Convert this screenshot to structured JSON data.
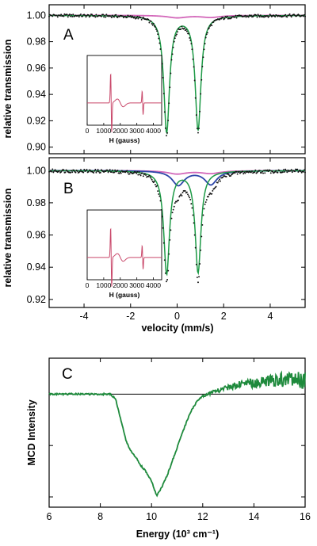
{
  "colors": {
    "experimental": "#111111",
    "total_fit": "#2e8b3a",
    "component_green": "#1d9a46",
    "component_pink": "#d368ba",
    "component_blue": "#2c45a8",
    "epr_trace": "#c9486a",
    "mcd_trace": "#1e8a3c",
    "baseline": "#000000"
  },
  "chart_data": [
    {
      "id": "A",
      "type": "line",
      "panel_label": "A",
      "xlabel": "",
      "ylabel": "relative transmission",
      "xlim": [
        -5.5,
        5.5
      ],
      "ylim": [
        0.895,
        1.008
      ],
      "x_ticks": [
        -4,
        -2,
        0,
        2,
        4
      ],
      "y_ticks": [
        "0.90",
        "0.92",
        "0.94",
        "0.96",
        "0.98",
        "1.00"
      ],
      "series": [
        {
          "role": "experimental",
          "style": "dots",
          "lines": [
            {
              "center": -0.45,
              "gamma": 0.16,
              "depth": 0.0905
            },
            {
              "center": 0.9,
              "gamma": 0.16,
              "depth": 0.0885
            }
          ]
        },
        {
          "role": "component_green",
          "style": "line",
          "lines": [
            {
              "center": -0.45,
              "gamma": 0.15,
              "depth": 0.0885
            },
            {
              "center": 0.9,
              "gamma": 0.15,
              "depth": 0.0865
            }
          ]
        },
        {
          "role": "component_pink",
          "style": "line",
          "lines": [
            {
              "center": 0.0,
              "gamma": 0.5,
              "depth": 0.0018
            },
            {
              "center": 1.45,
              "gamma": 0.5,
              "depth": 0.0015
            }
          ]
        }
      ],
      "inset": {
        "type": "line",
        "xlabel": "H (gauss)",
        "x_ticks": [
          "0",
          "1000",
          "2000",
          "3000",
          "4000"
        ],
        "xlim": [
          0,
          4500
        ],
        "features": [
          {
            "x": 1450,
            "amp": 1.0,
            "width": 45
          },
          {
            "x": 2000,
            "amp": 0.13,
            "width": 250
          },
          {
            "x": 3350,
            "amp": 0.4,
            "width": 40
          }
        ]
      }
    },
    {
      "id": "B",
      "type": "line",
      "panel_label": "B",
      "xlabel": "velocity (mm/s)",
      "ylabel": "relative transmission",
      "xlim": [
        -5.5,
        5.5
      ],
      "ylim": [
        0.915,
        1.008
      ],
      "x_ticks": [
        "-4",
        "-2",
        "0",
        "2",
        "4"
      ],
      "y_ticks": [
        "0.92",
        "0.94",
        "0.96",
        "0.98",
        "1.00"
      ],
      "series": [
        {
          "role": "experimental",
          "style": "dots",
          "lines": [
            {
              "center": -0.45,
              "gamma": 0.16,
              "depth": 0.066
            },
            {
              "center": 0.9,
              "gamma": 0.16,
              "depth": 0.0655
            },
            {
              "center": 0.05,
              "gamma": 0.32,
              "depth": 0.009
            },
            {
              "center": 1.45,
              "gamma": 0.32,
              "depth": 0.0085
            }
          ]
        },
        {
          "role": "component_green",
          "style": "line",
          "lines": [
            {
              "center": -0.45,
              "gamma": 0.15,
              "depth": 0.064
            },
            {
              "center": 0.9,
              "gamma": 0.15,
              "depth": 0.063
            }
          ]
        },
        {
          "role": "component_blue",
          "style": "line",
          "lines": [
            {
              "center": 0.05,
              "gamma": 0.32,
              "depth": 0.009
            },
            {
              "center": 1.45,
              "gamma": 0.32,
              "depth": 0.0085
            }
          ]
        },
        {
          "role": "component_pink",
          "style": "line",
          "lines": [
            {
              "center": 0.0,
              "gamma": 0.5,
              "depth": 0.002
            },
            {
              "center": 1.45,
              "gamma": 0.5,
              "depth": 0.0017
            }
          ]
        }
      ],
      "inset": {
        "type": "line",
        "xlabel": "H (gauss)",
        "x_ticks": [
          "0",
          "1000",
          "2000",
          "3000",
          "4000"
        ],
        "xlim": [
          0,
          4500
        ],
        "features": [
          {
            "x": 1450,
            "amp": 1.0,
            "width": 45
          },
          {
            "x": 2000,
            "amp": 0.13,
            "width": 250
          },
          {
            "x": 3350,
            "amp": 0.4,
            "width": 40
          }
        ]
      }
    },
    {
      "id": "C",
      "type": "line",
      "panel_label": "C",
      "xlabel": "Energy (10³ cm⁻¹)",
      "ylabel": "MCD Intensity",
      "xlim": [
        6,
        16
      ],
      "ylim": [
        -1.1,
        0.35
      ],
      "x_ticks": [
        "6",
        "8",
        "10",
        "12",
        "14",
        "16"
      ],
      "y_ticks": [
        0,
        -0.5,
        -1.0
      ],
      "baseline": 0,
      "series": [
        {
          "role": "mcd_trace",
          "style": "line",
          "points": [
            [
              6.0,
              0.0
            ],
            [
              8.4,
              0.0
            ],
            [
              8.6,
              -0.05
            ],
            [
              8.8,
              -0.25
            ],
            [
              9.0,
              -0.45
            ],
            [
              9.2,
              -0.56
            ],
            [
              9.4,
              -0.62
            ],
            [
              9.6,
              -0.7
            ],
            [
              9.8,
              -0.76
            ],
            [
              10.0,
              -0.85
            ],
            [
              10.2,
              -0.99
            ],
            [
              10.35,
              -0.93
            ],
            [
              10.6,
              -0.8
            ],
            [
              10.8,
              -0.66
            ],
            [
              11.0,
              -0.52
            ],
            [
              11.2,
              -0.38
            ],
            [
              11.4,
              -0.25
            ],
            [
              11.6,
              -0.14
            ],
            [
              11.8,
              -0.06
            ],
            [
              12.0,
              -0.02
            ],
            [
              12.4,
              0.02
            ],
            [
              12.8,
              0.05
            ],
            [
              13.2,
              0.08
            ],
            [
              13.6,
              0.1
            ],
            [
              14.0,
              0.11
            ],
            [
              14.5,
              0.13
            ],
            [
              15.0,
              0.14
            ],
            [
              15.5,
              0.15
            ],
            [
              16.0,
              0.14
            ]
          ]
        }
      ]
    }
  ]
}
